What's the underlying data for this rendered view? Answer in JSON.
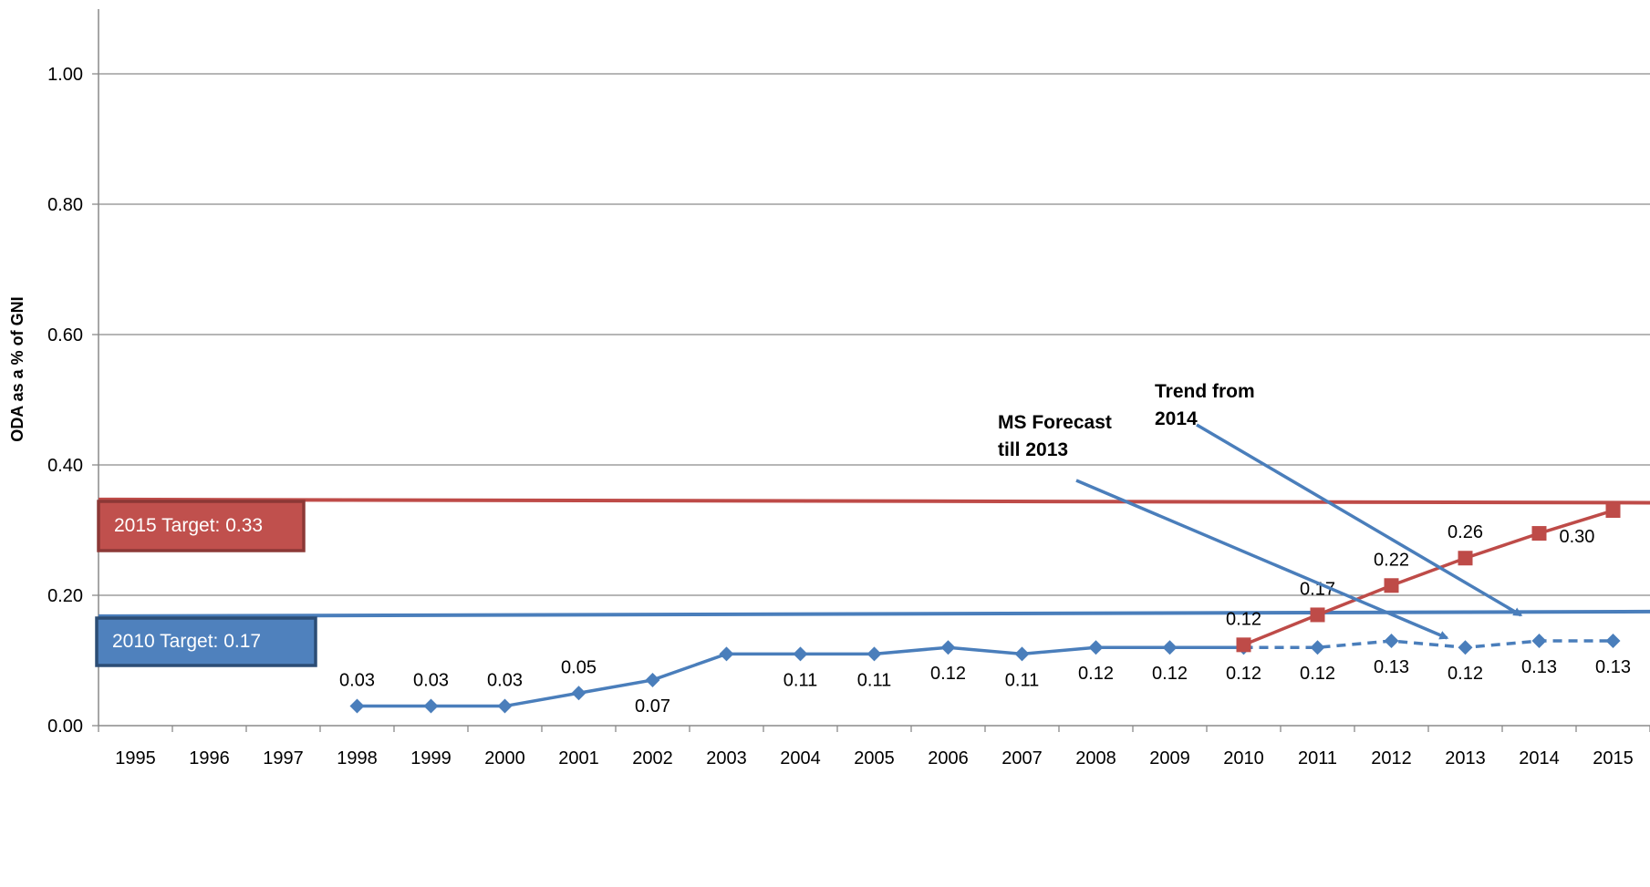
{
  "chart_data": {
    "type": "line",
    "ylabel": "ODA as a % of GNI",
    "ylim": [
      0,
      1.0
    ],
    "yticks": [
      0.0,
      0.2,
      0.4,
      0.6,
      0.8,
      1.0
    ],
    "ytick_labels": [
      "0.00",
      "0.20",
      "0.40",
      "0.60",
      "0.80",
      "1.00"
    ],
    "categories": [
      "1995",
      "1996",
      "1997",
      "1998",
      "1999",
      "2000",
      "2001",
      "2002",
      "2003",
      "2004",
      "2005",
      "2006",
      "2007",
      "2008",
      "2009",
      "2010",
      "2011",
      "2012",
      "2013",
      "2014",
      "2015"
    ],
    "grid": true,
    "series": [
      {
        "key": "actual",
        "color": "#4a7ebb",
        "marker": "diamond",
        "line_style": "solid",
        "points": [
          {
            "x": "1998",
            "y": 0.03,
            "label": "0.03",
            "label_pos": "above"
          },
          {
            "x": "1999",
            "y": 0.03,
            "label": "0.03",
            "label_pos": "above"
          },
          {
            "x": "2000",
            "y": 0.03,
            "label": "0.03",
            "label_pos": "above"
          },
          {
            "x": "2001",
            "y": 0.05,
            "label": "0.05",
            "label_pos": "above"
          },
          {
            "x": "2002",
            "y": 0.07,
            "label": "0.07",
            "label_pos": "below"
          },
          {
            "x": "2003",
            "y": 0.11,
            "label": "",
            "label_pos": "above"
          },
          {
            "x": "2004",
            "y": 0.11,
            "label": "0.11",
            "label_pos": "below"
          },
          {
            "x": "2005",
            "y": 0.11,
            "label": "0.11",
            "label_pos": "below"
          },
          {
            "x": "2006",
            "y": 0.12,
            "label": "0.12",
            "label_pos": "below"
          },
          {
            "x": "2007",
            "y": 0.11,
            "label": "0.11",
            "label_pos": "below"
          },
          {
            "x": "2008",
            "y": 0.12,
            "label": "0.12",
            "label_pos": "below"
          },
          {
            "x": "2009",
            "y": 0.12,
            "label": "0.12",
            "label_pos": "below"
          },
          {
            "x": "2010",
            "y": 0.12,
            "label": "0.12",
            "label_pos": "below"
          }
        ]
      },
      {
        "key": "ms_forecast",
        "color": "#4a7ebb",
        "marker": "diamond",
        "line_style": "dashed",
        "points": [
          {
            "x": "2010",
            "y": 0.12,
            "label": "",
            "label_pos": "below"
          },
          {
            "x": "2011",
            "y": 0.12,
            "label": "0.12",
            "label_pos": "below"
          },
          {
            "x": "2012",
            "y": 0.13,
            "label": "0.13",
            "label_pos": "below"
          },
          {
            "x": "2013",
            "y": 0.12,
            "label": "0.12",
            "label_pos": "below"
          },
          {
            "x": "2014",
            "y": 0.13,
            "label": "0.13",
            "label_pos": "below"
          },
          {
            "x": "2015",
            "y": 0.13,
            "label": "0.13",
            "label_pos": "below"
          }
        ]
      },
      {
        "key": "trend",
        "color": "#be4b48",
        "marker": "square",
        "line_style": "solid",
        "points": [
          {
            "x": "2010",
            "y": 0.124,
            "label": "0.12",
            "label_pos": "above"
          },
          {
            "x": "2011",
            "y": 0.17,
            "label": "0.17",
            "label_pos": "above"
          },
          {
            "x": "2012",
            "y": 0.215,
            "label": "0.22",
            "label_pos": "above"
          },
          {
            "x": "2013",
            "y": 0.257,
            "label": "0.26",
            "label_pos": "above"
          },
          {
            "x": "2014",
            "y": 0.295,
            "label": "0.30",
            "label_pos": "right"
          },
          {
            "x": "2015",
            "y": 0.33,
            "label": "",
            "label_pos": "above"
          }
        ]
      }
    ],
    "target_lines": [
      {
        "key": "target_2015",
        "value": 0.33,
        "y_start": 0.347,
        "y_end": 0.342,
        "color": "#be4b48",
        "label": "2015 Target: 0.33",
        "box_color": "#c0504d",
        "box_border": "#8c3836"
      },
      {
        "key": "target_2010",
        "value": 0.17,
        "y_start": 0.168,
        "y_end": 0.175,
        "color": "#4a7ebb",
        "label": "2010 Target: 0.17",
        "box_color": "#4f81bd",
        "box_border": "#2c4d75"
      }
    ],
    "annotations": [
      {
        "key": "ms_forecast_note",
        "lines": [
          "MS Forecast",
          "till 2013"
        ],
        "arrow_to": {
          "x": "2013",
          "y": 0.14
        }
      },
      {
        "key": "trend_note",
        "lines": [
          "Trend from",
          "2014"
        ],
        "arrow_to": {
          "x": "2014",
          "y": 0.175
        }
      }
    ]
  }
}
